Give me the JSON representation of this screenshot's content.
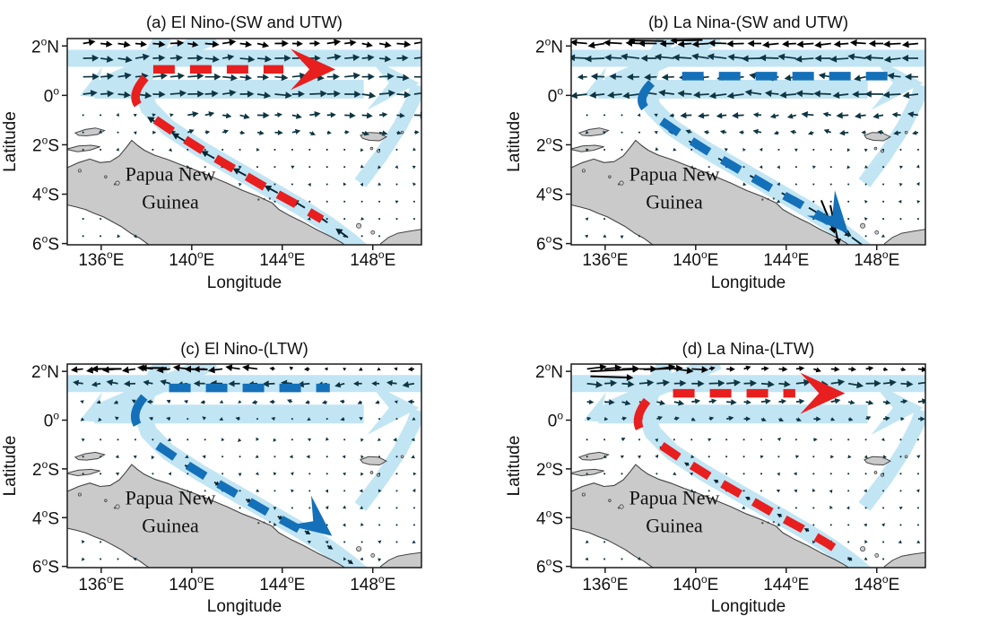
{
  "figure": {
    "background": "#ffffff",
    "colors": {
      "band": "#c2e5f4",
      "land": "#cacaca",
      "land_outline": "#444444",
      "red": "#e71f1e",
      "blue": "#1470b8",
      "quiver": "#0e3543",
      "quiver_dark": "#000000",
      "text": "#111111"
    }
  },
  "axis": {
    "x_label": "Longitude",
    "y_label": "Latitude",
    "x_ticks": [
      {
        "num": "136",
        "deg": "o",
        "dir": "E"
      },
      {
        "num": "140",
        "deg": "o",
        "dir": "E"
      },
      {
        "num": "144",
        "deg": "o",
        "dir": "E"
      },
      {
        "num": "148",
        "deg": "o",
        "dir": "E"
      }
    ],
    "y_ticks": [
      {
        "num": "2",
        "deg": "o",
        "dir": "N"
      },
      {
        "num": "0",
        "deg": "o",
        "dir": ""
      },
      {
        "num": "2",
        "deg": "o",
        "dir": "S"
      },
      {
        "num": "4",
        "deg": "o",
        "dir": "S"
      },
      {
        "num": "6",
        "deg": "o",
        "dir": "S"
      }
    ]
  },
  "land_label": {
    "line1": "Papua New",
    "line2": "Guinea"
  },
  "chart_data": {
    "type": "map-quiver",
    "x_tick_lons": [
      136,
      140,
      144,
      148
    ],
    "y_tick_lats": [
      2,
      0,
      -2,
      -4,
      -6
    ],
    "lon_range": [
      134.5,
      150.15
    ],
    "lat_range": [
      -6.05,
      2.3
    ],
    "shared": {
      "land_main": [
        [
          134.45,
          -2.95
        ],
        [
          135.0,
          -2.72
        ],
        [
          135.5,
          -2.58
        ],
        [
          135.95,
          -2.72
        ],
        [
          136.4,
          -2.68
        ],
        [
          136.8,
          -2.45
        ],
        [
          137.1,
          -2.12
        ],
        [
          137.35,
          -1.82
        ],
        [
          137.6,
          -2.02
        ],
        [
          137.9,
          -2.22
        ],
        [
          138.35,
          -2.42
        ],
        [
          138.95,
          -2.6
        ],
        [
          139.55,
          -2.82
        ],
        [
          140.15,
          -3.02
        ],
        [
          140.85,
          -3.28
        ],
        [
          141.55,
          -3.55
        ],
        [
          142.25,
          -3.85
        ],
        [
          142.95,
          -4.1
        ],
        [
          143.55,
          -4.35
        ],
        [
          143.85,
          -4.62
        ],
        [
          144.35,
          -4.88
        ],
        [
          144.95,
          -5.15
        ],
        [
          145.55,
          -5.45
        ],
        [
          146.15,
          -5.72
        ],
        [
          146.6,
          -5.95
        ],
        [
          146.95,
          -6.18
        ],
        [
          147.1,
          -6.45
        ],
        [
          138.35,
          -6.45
        ],
        [
          138.1,
          -6.05
        ],
        [
          137.7,
          -5.78
        ],
        [
          137.3,
          -5.58
        ],
        [
          136.9,
          -5.32
        ],
        [
          136.5,
          -5.12
        ],
        [
          136.1,
          -4.92
        ],
        [
          135.7,
          -4.78
        ],
        [
          135.3,
          -4.62
        ],
        [
          134.9,
          -4.52
        ],
        [
          134.45,
          -4.42
        ]
      ],
      "islands": [
        [
          [
            134.85,
            -1.52
          ],
          [
            135.3,
            -1.38
          ],
          [
            135.75,
            -1.32
          ],
          [
            136.15,
            -1.42
          ],
          [
            135.85,
            -1.58
          ],
          [
            135.35,
            -1.64
          ],
          [
            135.0,
            -1.62
          ]
        ],
        [
          [
            134.45,
            -2.18
          ],
          [
            135.0,
            -2.05
          ],
          [
            135.55,
            -2.02
          ],
          [
            135.95,
            -2.08
          ],
          [
            135.5,
            -2.22
          ],
          [
            134.95,
            -2.28
          ]
        ],
        [
          [
            147.45,
            -1.62
          ],
          [
            147.8,
            -1.5
          ],
          [
            148.25,
            -1.52
          ],
          [
            148.6,
            -1.68
          ],
          [
            148.3,
            -1.84
          ],
          [
            147.85,
            -1.82
          ],
          [
            147.55,
            -1.74
          ]
        ],
        [
          [
            148.15,
            -6.45
          ],
          [
            148.35,
            -6.0
          ],
          [
            148.7,
            -5.75
          ],
          [
            149.1,
            -5.58
          ],
          [
            149.6,
            -5.5
          ],
          [
            150.2,
            -5.42
          ],
          [
            150.25,
            -6.45
          ]
        ]
      ],
      "ocean_islets": [
        [
          136.72,
          -3.55,
          2.2
        ],
        [
          147.38,
          -5.28,
          2.6
        ],
        [
          148.0,
          -5.55,
          2.0
        ],
        [
          148.25,
          -2.25,
          1.6
        ],
        [
          147.95,
          -2.15,
          1.4
        ],
        [
          135.05,
          -3.05,
          1.6
        ],
        [
          149.3,
          -1.5,
          1.4
        ],
        [
          136.2,
          -3.3,
          1.3
        ]
      ],
      "land_dots": [
        [
          142.95,
          -4.22,
          1.2
        ],
        [
          143.2,
          -4.2,
          1.2
        ],
        [
          143.45,
          -4.18,
          1.2
        ],
        [
          136.6,
          -3.6,
          1.2
        ]
      ],
      "bands": {
        "upper_zonal": {
          "lat": 1.5,
          "from": 134.4,
          "to": 150.2,
          "width": 19
        },
        "lower_zonal": {
          "lat": 0.25,
          "from": 135.7,
          "to": 147.6,
          "width": 21
        },
        "east_head": {
          "tip": [
            150.05,
            0.5
          ],
          "len": 58,
          "halfw": 30
        },
        "sw_band": {
          "pts": [
            [
              141.0,
              2.4
            ],
            [
              136.1,
              0.42
            ]
          ],
          "width": 18,
          "head_tip": [
            135.05,
            -0.02
          ],
          "head_len": 36,
          "head_halfw": 19
        },
        "coastal": {
          "pts": [
            [
              138.75,
              2.4
            ],
            [
              138.05,
              1.2
            ],
            [
              137.8,
              0.3
            ],
            [
              138.1,
              -0.5
            ],
            [
              138.95,
              -1.3
            ],
            [
              140.35,
              -2.15
            ],
            [
              141.95,
              -3.0
            ],
            [
              143.55,
              -3.85
            ],
            [
              144.95,
              -4.6
            ],
            [
              146.05,
              -5.25
            ],
            [
              147.0,
              -5.9
            ],
            [
              147.5,
              -6.3
            ]
          ],
          "width": 19
        },
        "right_diag": {
          "pts": [
            [
              147.45,
              -3.55
            ],
            [
              148.35,
              -2.45
            ],
            [
              149.2,
              -1.25
            ],
            [
              149.8,
              -0.15
            ],
            [
              150.0,
              0.4
            ]
          ],
          "width": 16
        }
      },
      "coast_dash_path": [
        [
          138.35,
          -0.95
        ],
        [
          139.3,
          -1.55
        ],
        [
          140.6,
          -2.3
        ],
        [
          142.0,
          -3.05
        ],
        [
          143.4,
          -3.8
        ],
        [
          144.7,
          -4.45
        ],
        [
          145.8,
          -5.05
        ],
        [
          146.8,
          -5.65
        ]
      ],
      "coast_arrow_path": [
        [
          138.6,
          -1.2
        ],
        [
          139.7,
          -1.85
        ],
        [
          141.0,
          -2.55
        ],
        [
          142.4,
          -3.25
        ],
        [
          143.8,
          -3.95
        ],
        [
          145.0,
          -4.55
        ],
        [
          146.0,
          -5.15
        ],
        [
          146.9,
          -5.75
        ]
      ]
    },
    "panels": [
      {
        "id": "a",
        "title": "(a) El Nino-(SW and UTW)",
        "flow": {
          "color_name": "red",
          "hex": "#e71f1e",
          "description": "anomalous flow from the New Guinea coast turning eastward along the equator",
          "zonal": {
            "lat": 1.05,
            "from": 138.3,
            "to": 144.05
          },
          "east_head": {
            "lon": 146.35,
            "lat": 1.05
          },
          "hook": {
            "from": [
              137.95,
              0.72
            ],
            "ctrl": [
              137.3,
              0.05
            ],
            "to": [
              137.62,
              -0.38
            ]
          },
          "coast": {
            "from_lon": 138.4,
            "to_lon": 145.75
          },
          "coast_head": null
        },
        "quiver": {
          "seed": 1,
          "taper": true,
          "coastal_amp": -0.5,
          "rows": [
            [
              2.1,
              0.55
            ],
            [
              1.5,
              0.6
            ],
            [
              0.75,
              0.62
            ],
            [
              0.05,
              0.68
            ],
            [
              -0.8,
              0.45
            ],
            [
              -1.5,
              0.3
            ]
          ],
          "extra_arrows": []
        }
      },
      {
        "id": "b",
        "title": "(b) La Nina-(SW and UTW)",
        "flow": {
          "color_name": "blue",
          "hex": "#1470b8",
          "description": "anomalous westward equatorial flow turning southeastward along the New Guinea coast",
          "zonal": {
            "lat": 0.78,
            "from": 139.4,
            "to": 148.95
          },
          "east_head": null,
          "hook": {
            "from": [
              138.05,
              0.5
            ],
            "ctrl": [
              137.4,
              -0.1
            ],
            "to": [
              137.75,
              -0.5
            ]
          },
          "coast": {
            "from_lon": 138.5,
            "to_lon": 145.9
          },
          "coast_head": {
            "tip": [
              146.75,
              -5.6
            ],
            "angle": 48
          }
        },
        "quiver": {
          "seed": 2,
          "taper": true,
          "coastal_amp": 0.62,
          "rows": [
            [
              2.1,
              -0.72
            ],
            [
              1.5,
              -0.8
            ],
            [
              0.75,
              -0.5
            ],
            [
              0.05,
              -0.72
            ],
            [
              -0.8,
              -0.45
            ],
            [
              -1.5,
              -0.3
            ]
          ],
          "extra_arrows": [
            [
              145.55,
              -4.25,
              68,
              40
            ],
            [
              145.95,
              -4.45,
              78,
              46
            ],
            [
              138.6,
              2.2,
              181,
              40
            ],
            [
              140.3,
              2.24,
              179,
              36
            ]
          ]
        }
      },
      {
        "id": "c",
        "title": "(c) El Nino-(LTW)",
        "flow": {
          "color_name": "blue",
          "hex": "#1470b8",
          "description": "anomalous westward flow north of the equator turning southeastward along the New Guinea coast",
          "zonal": {
            "lat": 1.32,
            "from": 139.0,
            "to": 146.1
          },
          "east_head": null,
          "hook": {
            "from": [
              137.9,
              0.95
            ],
            "ctrl": [
              137.3,
              0.3
            ],
            "to": [
              137.6,
              -0.2
            ]
          },
          "coast": {
            "from_lon": 138.5,
            "to_lon": 145.1
          },
          "coast_head": {
            "tip": [
              146.2,
              -4.75
            ],
            "angle": 38
          }
        },
        "quiver": {
          "seed": 3,
          "taper": false,
          "coastal_amp": 0.22,
          "rows": [
            [
              2.1,
              -0.6,
              143,
              -0.18
            ],
            [
              1.5,
              -0.45
            ],
            [
              0.75,
              -0.18
            ],
            [
              0.05,
              -0.12
            ],
            [
              -0.8,
              -0.07
            ],
            [
              -1.5,
              -0.05
            ]
          ],
          "extra_arrows": [
            [
              136.9,
              2.1,
              180,
              34
            ],
            [
              138.9,
              2.14,
              180,
              30
            ],
            [
              140.7,
              2.08,
              181,
              26
            ]
          ]
        }
      },
      {
        "id": "d",
        "title": "(d) La Nina-(LTW)",
        "flow": {
          "color_name": "red",
          "hex": "#e71f1e",
          "description": "anomalous flow from the New Guinea coast turning eastward north of the equator",
          "zonal": {
            "lat": 1.1,
            "from": 139.0,
            "to": 144.4
          },
          "east_head": {
            "lon": 146.6,
            "lat": 1.1
          },
          "hook": {
            "from": [
              137.85,
              0.8
            ],
            "ctrl": [
              137.25,
              0.1
            ],
            "to": [
              137.55,
              -0.4
            ]
          },
          "coast": {
            "from_lon": 138.5,
            "to_lon": 146.6
          },
          "coast_head": null
        },
        "quiver": {
          "seed": 4,
          "taper": false,
          "coastal_amp": -0.18,
          "rows": [
            [
              2.1,
              0.85,
              140.5,
              0.3
            ],
            [
              1.5,
              0.62
            ],
            [
              0.75,
              0.4
            ],
            [
              0.05,
              0.25
            ],
            [
              -0.8,
              0.07
            ],
            [
              -1.5,
              0.05
            ]
          ],
          "extra_arrows": [
            [
              135.35,
              2.0,
              -3,
              55
            ],
            [
              135.35,
              1.8,
              2,
              48
            ],
            [
              137.7,
              2.08,
              -2,
              44
            ]
          ]
        }
      }
    ]
  }
}
